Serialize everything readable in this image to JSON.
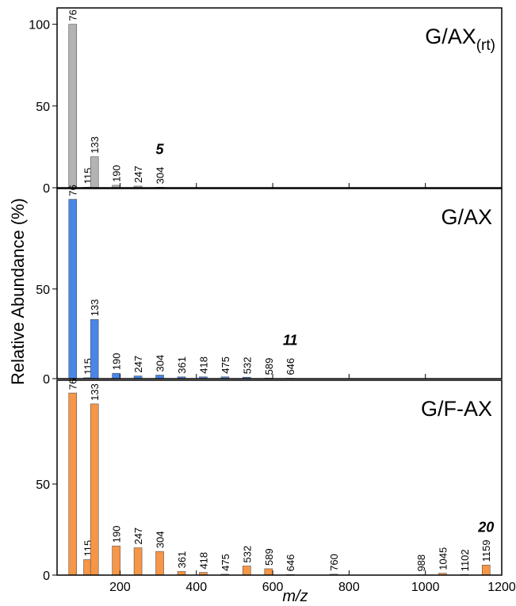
{
  "chart_data": [
    {
      "type": "bar",
      "label": "G/AX",
      "label_sub": "(rt)",
      "annotation": "5",
      "color": "#b3b3b3",
      "x": [
        76,
        115,
        133,
        190,
        247,
        304
      ],
      "values": [
        100,
        0.3,
        19,
        1.5,
        1,
        0.3
      ],
      "xlim": [
        35,
        1200
      ],
      "ylim": [
        0,
        110
      ],
      "yticks": [
        0,
        50,
        100
      ]
    },
    {
      "type": "bar",
      "label": "G/AX",
      "annotation": "11",
      "color": "#4a86e8",
      "ylabel": "Relative Abundance (%)",
      "x": [
        76,
        115,
        133,
        190,
        247,
        304,
        361,
        418,
        475,
        532,
        589,
        646
      ],
      "values": [
        100,
        0.5,
        33,
        3,
        1.5,
        2,
        1,
        1,
        1,
        0.8,
        0.3,
        0.2
      ],
      "xlim": [
        35,
        1200
      ],
      "ylim": [
        0,
        106
      ],
      "yticks": [
        0,
        50
      ]
    },
    {
      "type": "bar",
      "label": "G/F-AX",
      "annotation": "20",
      "color": "#f79646",
      "xlabel": "m/z",
      "x": [
        76,
        115,
        133,
        190,
        247,
        304,
        361,
        418,
        475,
        532,
        589,
        646,
        760,
        988,
        1045,
        1102,
        1159
      ],
      "values": [
        100,
        8.5,
        94,
        16,
        15,
        13,
        2,
        1.5,
        0.5,
        5,
        3.5,
        0.3,
        0.5,
        0.2,
        1,
        0.3,
        5.5
      ],
      "xlim": [
        35,
        1200
      ],
      "ylim": [
        0,
        107
      ],
      "yticks": [
        0,
        50
      ],
      "xticks": [
        200,
        400,
        600,
        800,
        1000,
        1200
      ]
    }
  ]
}
